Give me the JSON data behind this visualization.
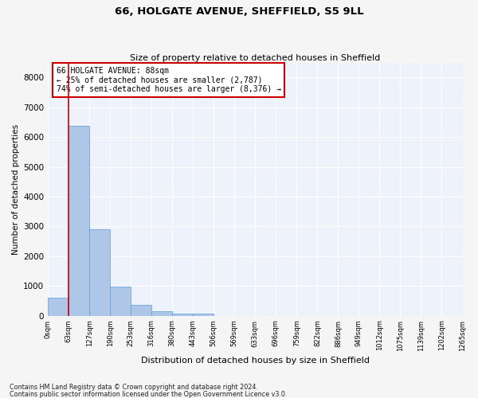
{
  "title": "66, HOLGATE AVENUE, SHEFFIELD, S5 9LL",
  "subtitle": "Size of property relative to detached houses in Sheffield",
  "xlabel": "Distribution of detached houses by size in Sheffield",
  "ylabel": "Number of detached properties",
  "footnote1": "Contains HM Land Registry data © Crown copyright and database right 2024.",
  "footnote2": "Contains public sector information licensed under the Open Government Licence v3.0.",
  "annotation_title": "66 HOLGATE AVENUE: 88sqm",
  "annotation_line1": "← 25% of detached houses are smaller (2,787)",
  "annotation_line2": "74% of semi-detached houses are larger (8,376) →",
  "bar_colors": [
    "#aec6e8",
    "#aec6e8",
    "#aec6e8",
    "#aec6e8",
    "#aec6e8",
    "#aec6e8",
    "#aec6e8",
    "#aec6e8",
    "#aec6e8",
    "#aec6e8",
    "#aec6e8",
    "#aec6e8",
    "#aec6e8",
    "#aec6e8",
    "#aec6e8",
    "#aec6e8",
    "#aec6e8",
    "#aec6e8",
    "#aec6e8",
    "#aec6e8"
  ],
  "bar_heights": [
    620,
    6380,
    2900,
    990,
    370,
    160,
    80,
    60,
    0,
    0,
    0,
    0,
    0,
    0,
    0,
    0,
    0,
    0,
    0,
    0
  ],
  "tick_labels": [
    "0sqm",
    "63sqm",
    "127sqm",
    "190sqm",
    "253sqm",
    "316sqm",
    "380sqm",
    "443sqm",
    "506sqm",
    "569sqm",
    "633sqm",
    "696sqm",
    "759sqm",
    "822sqm",
    "886sqm",
    "949sqm",
    "1012sqm",
    "1075sqm",
    "1139sqm",
    "1202sqm",
    "1265sqm"
  ],
  "ylim": [
    0,
    8500
  ],
  "vline_x": 1.0,
  "vline_color": "#cc0000",
  "annotation_box_color": "#cc0000",
  "background_color": "#eef2fa",
  "grid_color": "#ffffff",
  "bar_edge_color": "#5b9bd5",
  "fig_background": "#f5f5f5"
}
